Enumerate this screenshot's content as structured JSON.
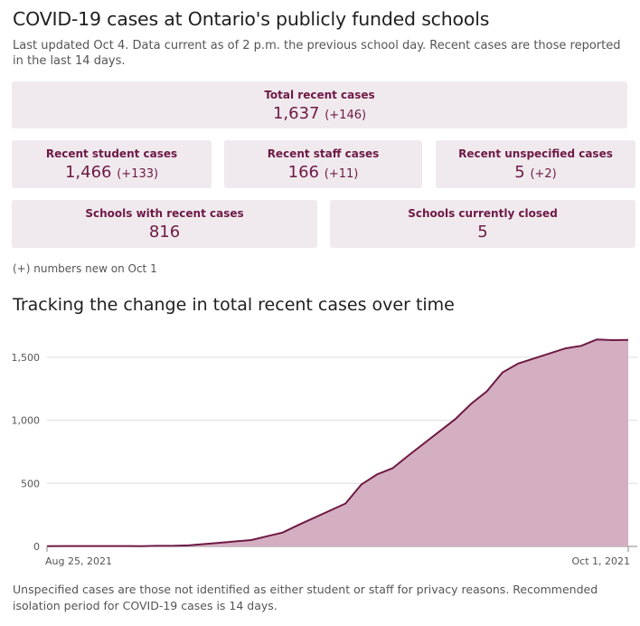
{
  "header": {
    "title": "COVID-19 cases at Ontario's publicly funded schools",
    "subtitle": "Last updated Oct 4. Data current as of 2 p.m. the previous school day. Recent cases are those reported in the last 14 days."
  },
  "cards": {
    "total": {
      "label": "Total recent cases",
      "value": "1,637",
      "change": "(+146)"
    },
    "student": {
      "label": "Recent student cases",
      "value": "1,466",
      "change": "(+133)"
    },
    "staff": {
      "label": "Recent staff cases",
      "value": "166",
      "change": "(+11)"
    },
    "unspecified": {
      "label": "Recent unspecified cases",
      "value": "5",
      "change": "(+2)"
    },
    "schools_recent": {
      "label": "Schools with recent cases",
      "value": "816"
    },
    "schools_closed": {
      "label": "Schools currently closed",
      "value": "5"
    }
  },
  "note": "(+) numbers new on Oct 1",
  "section_title": "Tracking the change in total recent cases over time",
  "footer": "Unspecified cases are those not identified as either student or staff for privacy reasons. Recommended isolation period for COVID-19 cases is 14 days.",
  "colors": {
    "accent": "#6e1a45",
    "fill": "#d4afc1",
    "card_bg": "#f0eaee"
  },
  "chart_data": {
    "type": "area",
    "x": [
      "2021-08-25",
      "2021-08-26",
      "2021-08-27",
      "2021-08-30",
      "2021-08-31",
      "2021-09-01",
      "2021-09-02",
      "2021-09-03",
      "2021-09-07",
      "2021-09-08",
      "2021-09-09",
      "2021-09-10",
      "2021-09-13",
      "2021-09-14",
      "2021-09-15",
      "2021-09-16",
      "2021-09-17",
      "2021-09-20",
      "2021-09-21",
      "2021-09-22",
      "2021-09-23",
      "2021-09-24",
      "2021-09-27",
      "2021-09-28",
      "2021-09-29",
      "2021-09-30",
      "2021-10-01"
    ],
    "values": [
      2,
      3,
      3,
      3,
      2,
      4,
      4,
      8,
      50,
      80,
      110,
      170,
      340,
      490,
      570,
      620,
      720,
      1010,
      1130,
      1230,
      1380,
      1450,
      1570,
      1590,
      1640,
      1635,
      1637
    ],
    "x_tick_labels": [
      "Aug 25, 2021",
      "Oct 1, 2021"
    ],
    "y_ticks": [
      0,
      500,
      1000,
      1500
    ],
    "y_tick_labels": [
      "0",
      "500",
      "1,000",
      "1,500"
    ],
    "ylim": [
      0,
      1750
    ],
    "grid": true,
    "xlabel": "",
    "ylabel": ""
  }
}
